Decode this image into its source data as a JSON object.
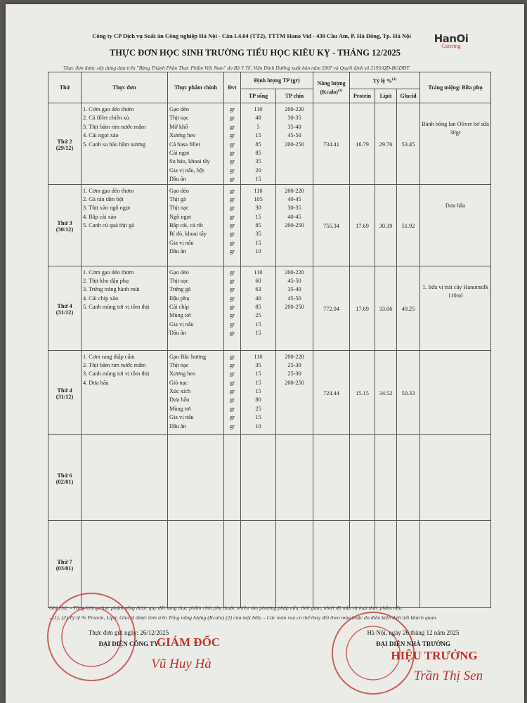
{
  "header": {
    "company": "Công ty CP Dịch vụ Suất ăn Công nghiệp Hà Nội - Căn L4.04 (TT2), TTTM Hano Vid - 430 Cầu Am, P. Hà Đông, Tp. Hà Nội",
    "logo": {
      "name": "HanOi",
      "tagline": "Catering"
    },
    "title": "THỰC ĐƠN HỌC SINH TRƯỜNG TIỂU HỌC KIÊU KỴ - THÁNG 12/2025",
    "subtitle": "Thực đơn được xây dựng dựa trên \"Bảng Thành Phần Thực Phẩm Việt Nam\" do Bộ Y Tế, Viện Dinh Dưỡng xuất bản năm 2007 và Quyết định số 2195/QĐ-BGDĐT"
  },
  "table": {
    "columns": {
      "day": "Thứ",
      "menu": "Thực đơn",
      "food": "Thực phẩm chính",
      "unit": "Đvt",
      "quantity": "Định lượng TP (gr)",
      "raw": "TP sống",
      "cooked": "TP chín",
      "energy": "Năng lượng (Kcalo)",
      "energy_note": "(1)",
      "ratio": "Tỷ lệ %",
      "ratio_note": "(2)",
      "protein": "Protein",
      "lipid": "Lipit",
      "glucid": "Glucid",
      "dessert": "Tráng miệng/ Bữa phụ"
    },
    "rows": [
      {
        "day": "Thứ 2",
        "date": "(29/12)",
        "menu": [
          "1. Cơm gạo dẻo thơm",
          "2. Cá fillet chiên xù",
          "3. Thịt băm rim nước mắm",
          "4. Cải ngọt xào",
          "5. Canh su hào hầm xương"
        ],
        "foods": [
          {
            "name": "Gạo dẻo",
            "unit": "gr",
            "raw": "110",
            "cooked": "200-220"
          },
          {
            "name": "Thịt nạc",
            "unit": "gr",
            "raw": "48",
            "cooked": "30-35"
          },
          {
            "name": "Mỡ khổ",
            "unit": "gr",
            "raw": "5",
            "cooked": "35-40"
          },
          {
            "name": "Xương heo",
            "unit": "gr",
            "raw": "15",
            "cooked": "45-50"
          },
          {
            "name": "Cá basa fillet",
            "unit": "gr",
            "raw": "85",
            "cooked": "200-250"
          },
          {
            "name": "Cải ngọt",
            "unit": "gr",
            "raw": "85"
          },
          {
            "name": "Su hào, khoai tây",
            "unit": "gr",
            "raw": "35"
          },
          {
            "name": "Gia vị nấu, bột",
            "unit": "gr",
            "raw": "20"
          },
          {
            "name": "Dầu ăn",
            "unit": "gr",
            "raw": "15"
          }
        ],
        "energy": "734.41",
        "protein": "16.79",
        "lipid": "29.76",
        "glucid": "53.45",
        "dessert": "Bánh bông lan Oliver bơ sữa 30gr"
      },
      {
        "day": "Thứ 3",
        "date": "(30/12)",
        "menu": [
          "1. Cơm gạo dẻo thơm",
          "2. Gà rán tẩm bột",
          "3. Thịt xào ngô ngọt",
          "4. Bắp cải xào",
          "5. Canh củ quả thịt gà"
        ],
        "foods": [
          {
            "name": "Gạo dẻo",
            "unit": "gr",
            "raw": "110",
            "cooked": "200-220"
          },
          {
            "name": "Thịt gà",
            "unit": "gr",
            "raw": "105",
            "cooked": "40-45"
          },
          {
            "name": "Thịt nạc",
            "unit": "gr",
            "raw": "30",
            "cooked": "30-35"
          },
          {
            "name": "Ngô ngọt",
            "unit": "gr",
            "raw": "15",
            "cooked": "40-45"
          },
          {
            "name": "Bắp cải, cà rốt",
            "unit": "gr",
            "raw": "85",
            "cooked": "200-250"
          },
          {
            "name": "Bí đỏ, khoai tây",
            "unit": "gr",
            "raw": "35"
          },
          {
            "name": "Gia vị nấu",
            "unit": "gr",
            "raw": "15"
          },
          {
            "name": "Dầu ăn",
            "unit": "gr",
            "raw": "10"
          }
        ],
        "energy": "755.34",
        "protein": "17.69",
        "lipid": "30.39",
        "glucid": "51.92",
        "dessert": "Dưa hấu"
      },
      {
        "day": "Thứ 4",
        "date": "(31/12)",
        "menu": [
          "1. Cơm gạo dẻo thơm",
          "2. Thịt kho đậu phụ",
          "3. Trứng tráng hành mùi",
          "4. Cải chíp xào",
          "5. Canh mùng tơi vị tôm thịt"
        ],
        "foods": [
          {
            "name": "Gạo dẻo",
            "unit": "gr",
            "raw": "110",
            "cooked": "200-220"
          },
          {
            "name": "Thịt nạc",
            "unit": "gr",
            "raw": "60",
            "cooked": "45-50"
          },
          {
            "name": "Trứng gà",
            "unit": "gr",
            "raw": "63",
            "cooked": "35-40"
          },
          {
            "name": "Đậu phụ",
            "unit": "gr",
            "raw": "40",
            "cooked": "45-50"
          },
          {
            "name": "Cải chíp",
            "unit": "gr",
            "raw": "85",
            "cooked": "200-250"
          },
          {
            "name": "Mùng tơi",
            "unit": "gr",
            "raw": "25"
          },
          {
            "name": "Gia vị nấu",
            "unit": "gr",
            "raw": "15"
          },
          {
            "name": "Dầu ăn",
            "unit": "gr",
            "raw": "15"
          }
        ],
        "energy": "772.04",
        "protein": "17.69",
        "lipid": "33.06",
        "glucid": "49.25",
        "dessert": "1. Sữa vị trái cây Hanoimilk 110ml"
      },
      {
        "day": "Thứ 4",
        "date": "(31/12)",
        "menu": [
          "1. Cơm rang thập cẩm",
          "2. Thịt băm rim nước mắm",
          "3. Canh mùng tơi vị tôm thịt",
          "4. Dưa hấu"
        ],
        "foods": [
          {
            "name": "Gạo Bắc hương",
            "unit": "gr",
            "raw": "110",
            "cooked": "200-220"
          },
          {
            "name": "Thịt nạc",
            "unit": "gr",
            "raw": "35",
            "cooked": "25-30"
          },
          {
            "name": "Xương heo",
            "unit": "gr",
            "raw": "15",
            "cooked": "25-30"
          },
          {
            "name": "Giò nạc",
            "unit": "gr",
            "raw": "15",
            "cooked": "200-250"
          },
          {
            "name": "Xúc xích",
            "unit": "gr",
            "raw": "15"
          },
          {
            "name": "Dưa hấu",
            "unit": "gr",
            "raw": "80"
          },
          {
            "name": "Mùng tơi",
            "unit": "gr",
            "raw": "25"
          },
          {
            "name": "Gia vị nấu",
            "unit": "gr",
            "raw": "15"
          },
          {
            "name": "Dầu ăn",
            "unit": "gr",
            "raw": "10"
          }
        ],
        "energy": "724.44",
        "protein": "15.15",
        "lipid": "34.52",
        "glucid": "50.33"
      },
      {
        "day": "Thứ 6",
        "date": "(02/01)"
      },
      {
        "day": "Thứ 7",
        "date": "(03/01)"
      }
    ]
  },
  "footer": {
    "notes": [
      "Ghi chú: - Tổng lượng thực phẩm sống được quy đổi sang thực phẩm chín phụ thuộc nhiều vào phương pháp nấu, thời gian, nhiệt độ nấu và loại thực phẩm nấu.",
      "- (1), (2) Tỷ lệ % Protein, Lipit, Glucid được tính trên Tổng năng lượng (Kcalo) (2) của một bữa. - Các món rau có thể thay đổi theo mùa hoặc do điều kiện thời tiết khách quan."
    ],
    "sent_date": "Thực đơn gửi ngày: 26/12/2025",
    "company": {
      "role": "ĐẠI DIỆN CÔNG TY",
      "position": "GIÁM ĐỐC",
      "signer": "Vũ Huy Hà"
    },
    "school": {
      "place_date": "Hà Nội, ngày 26 tháng 12 năm 2025",
      "role": "ĐẠI DIỆN NHÀ TRƯỜNG",
      "position": "HIỆU TRƯỞNG",
      "signer": "Trần Thị Sen"
    }
  }
}
